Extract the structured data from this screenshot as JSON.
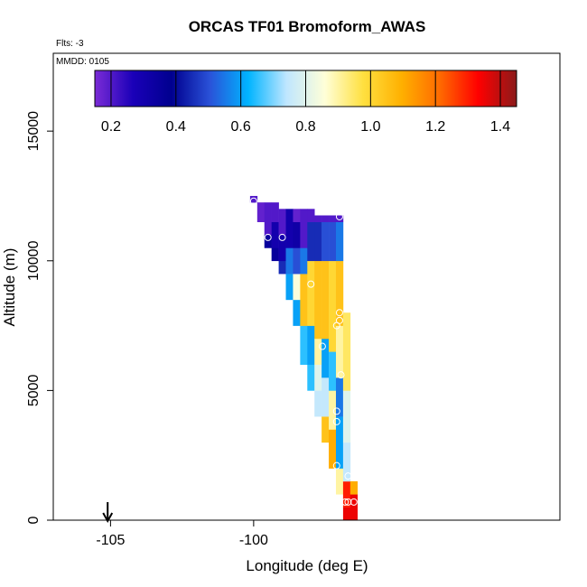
{
  "chart_data": {
    "type": "heatmap",
    "title": "ORCAS TF01 Bromoform_AWAS",
    "flights_label": "Flts: -3",
    "date_label": "MMDD: 0105",
    "xlabel": "Longitude (deg E)",
    "ylabel": "Altitude (m)",
    "xlim": [
      -107,
      -89.3
    ],
    "ylim": [
      0,
      18000
    ],
    "x_ticks": [
      -105,
      -100
    ],
    "x_tick_labels": [
      "-105",
      "-100"
    ],
    "y_ticks": [
      0,
      5000,
      10000,
      15000
    ],
    "y_tick_labels": [
      "0",
      "5000",
      "10000",
      "15000"
    ],
    "colorbar": {
      "range": [
        0.15,
        1.45
      ],
      "ticks": [
        0.2,
        0.4,
        0.6,
        0.8,
        1.0,
        1.2,
        1.4
      ],
      "tick_labels": [
        "0.2",
        "0.4",
        "0.6",
        "0.8",
        "1.0",
        "1.2",
        "1.4"
      ],
      "colors": [
        "#7b2cd6",
        "#1a00b8",
        "#00008f",
        "#2a52d8",
        "#00b4ff",
        "#bfe6ff",
        "#ffffd8",
        "#ffe040",
        "#ffb000",
        "#ff6a00",
        "#ff0000",
        "#8b1a1a"
      ]
    },
    "arrow_marker": {
      "x": -105.1,
      "label": ""
    },
    "columns": [
      {
        "lon": -100.0,
        "cells": [
          [
            12250,
            12500,
            0.2
          ]
        ]
      },
      {
        "lon": -99.75,
        "cells": [
          [
            11500,
            12250,
            0.18
          ]
        ]
      },
      {
        "lon": -99.5,
        "cells": [
          [
            10500,
            11000,
            0.35
          ],
          [
            11000,
            12250,
            0.2
          ]
        ]
      },
      {
        "lon": -99.25,
        "cells": [
          [
            10000,
            10500,
            0.35
          ],
          [
            10500,
            11500,
            0.3
          ],
          [
            11500,
            12250,
            0.2
          ]
        ]
      },
      {
        "lon": -99.0,
        "cells": [
          [
            9500,
            10000,
            0.45
          ],
          [
            10000,
            11000,
            0.3
          ],
          [
            11000,
            12000,
            0.2
          ]
        ]
      },
      {
        "lon": -98.75,
        "cells": [
          [
            8500,
            9500,
            0.6
          ],
          [
            9500,
            10500,
            0.55
          ],
          [
            10500,
            12000,
            0.3
          ]
        ]
      },
      {
        "lon": -98.5,
        "cells": [
          [
            7500,
            8500,
            0.6
          ],
          [
            8500,
            9500,
            0.85
          ],
          [
            9500,
            10500,
            0.5
          ],
          [
            10500,
            11500,
            0.32
          ],
          [
            11500,
            12000,
            0.18
          ]
        ]
      },
      {
        "lon": -98.25,
        "cells": [
          [
            6000,
            7500,
            0.65
          ],
          [
            7500,
            9500,
            1.05
          ],
          [
            9500,
            10500,
            0.55
          ],
          [
            10500,
            12000,
            0.2
          ]
        ]
      },
      {
        "lon": -98.0,
        "cells": [
          [
            5000,
            6000,
            0.65
          ],
          [
            6000,
            7500,
            0.6
          ],
          [
            7500,
            10000,
            1.0
          ],
          [
            10000,
            11500,
            0.45
          ],
          [
            11500,
            12000,
            0.2
          ]
        ]
      },
      {
        "lon": -97.75,
        "cells": [
          [
            4000,
            5000,
            0.75
          ],
          [
            5000,
            6000,
            0.8
          ],
          [
            6000,
            7000,
            0.9
          ],
          [
            7000,
            10000,
            1.05
          ],
          [
            10000,
            11500,
            0.45
          ],
          [
            11500,
            11750,
            0.2
          ]
        ]
      },
      {
        "lon": -97.5,
        "cells": [
          [
            3000,
            4000,
            1.05
          ],
          [
            4000,
            5500,
            0.75
          ],
          [
            5500,
            7000,
            0.6
          ],
          [
            7000,
            10000,
            1.05
          ],
          [
            10000,
            11500,
            0.5
          ],
          [
            11500,
            11750,
            0.2
          ]
        ]
      },
      {
        "lon": -97.25,
        "cells": [
          [
            2000,
            3500,
            1.1
          ],
          [
            3500,
            5000,
            0.9
          ],
          [
            5000,
            6500,
            0.65
          ],
          [
            6500,
            10000,
            1.0
          ],
          [
            10000,
            11500,
            0.5
          ],
          [
            11500,
            11750,
            0.2
          ]
        ]
      },
      {
        "lon": -97.0,
        "cells": [
          [
            1000,
            2000,
            0.9
          ],
          [
            2000,
            4000,
            0.6
          ],
          [
            4000,
            5500,
            0.55
          ],
          [
            5500,
            7500,
            0.9
          ],
          [
            7500,
            10000,
            1.05
          ],
          [
            10000,
            11500,
            0.55
          ],
          [
            11500,
            11750,
            0.2
          ]
        ]
      },
      {
        "lon": -96.75,
        "cells": [
          [
            0,
            500,
            1.35
          ],
          [
            500,
            1500,
            1.3
          ],
          [
            1500,
            3000,
            0.75
          ],
          [
            3000,
            5000,
            0.8
          ],
          [
            5000,
            8000,
            0.95
          ]
        ]
      },
      {
        "lon": -96.5,
        "cells": [
          [
            0,
            1000,
            1.35
          ],
          [
            1000,
            1500,
            1.1
          ]
        ]
      }
    ],
    "samples": [
      {
        "lon": -100.0,
        "alt": 12300
      },
      {
        "lon": -99.5,
        "alt": 10900
      },
      {
        "lon": -99.0,
        "alt": 10900
      },
      {
        "lon": -97.0,
        "alt": 11700
      },
      {
        "lon": -98.0,
        "alt": 9100
      },
      {
        "lon": -97.0,
        "alt": 8000
      },
      {
        "lon": -97.0,
        "alt": 7700
      },
      {
        "lon": -97.1,
        "alt": 7500
      },
      {
        "lon": -97.6,
        "alt": 6700
      },
      {
        "lon": -96.95,
        "alt": 5600
      },
      {
        "lon": -97.1,
        "alt": 4200
      },
      {
        "lon": -97.1,
        "alt": 3800
      },
      {
        "lon": -97.1,
        "alt": 2100
      },
      {
        "lon": -96.7,
        "alt": 1700
      },
      {
        "lon": -97.0,
        "alt": 700
      },
      {
        "lon": -96.8,
        "alt": 700
      },
      {
        "lon": -96.7,
        "alt": 700
      },
      {
        "lon": -96.5,
        "alt": 700
      },
      {
        "lon": -97.0,
        "alt": 600
      }
    ]
  }
}
